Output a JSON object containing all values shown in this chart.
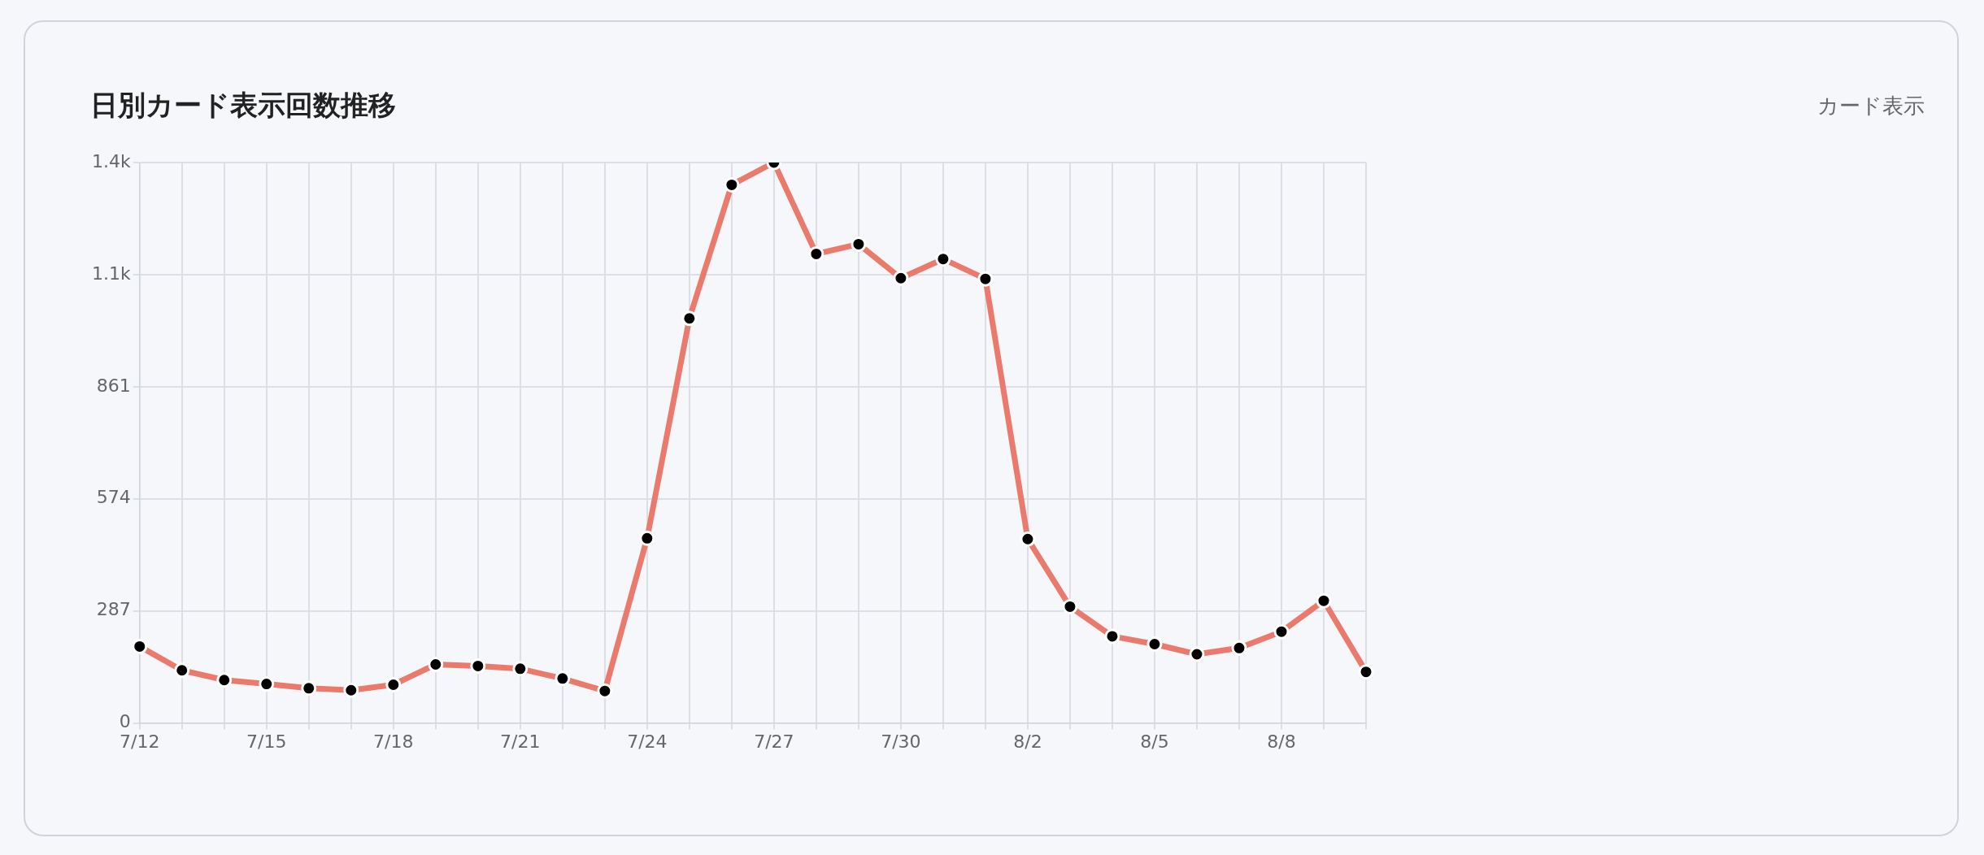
{
  "chart_data": {
    "type": "line",
    "title": "日別カード表示回数推移",
    "annotations": [
      "カード表示"
    ],
    "categories": [
      "7/12",
      null,
      null,
      "7/15",
      null,
      null,
      "7/18",
      null,
      null,
      "7/21",
      null,
      null,
      "7/24",
      null,
      null,
      "7/27",
      null,
      null,
      "7/30",
      null,
      null,
      "8/2",
      null,
      null,
      "8/5",
      null,
      null,
      "8/8",
      null,
      null
    ],
    "series": [
      {
        "color": "#ea7a6c",
        "values": [
          196,
          135,
          110,
          100,
          89,
          84,
          98,
          150,
          146,
          139,
          114,
          82,
          473,
          1036,
          1378,
          1435,
          1201,
          1226,
          1139,
          1188,
          1137,
          471,
          298,
          222,
          202,
          176,
          192,
          234,
          313,
          131
        ]
      }
    ],
    "ylim": [
      0,
      1435
    ],
    "yticks": [
      0,
      287,
      574,
      861,
      {
        "value": 1148,
        "label": "1.1k"
      },
      {
        "value": 1435,
        "label": "1.4k"
      }
    ],
    "grid": true,
    "legend": false,
    "marker": "circle",
    "line_style": "solid"
  }
}
